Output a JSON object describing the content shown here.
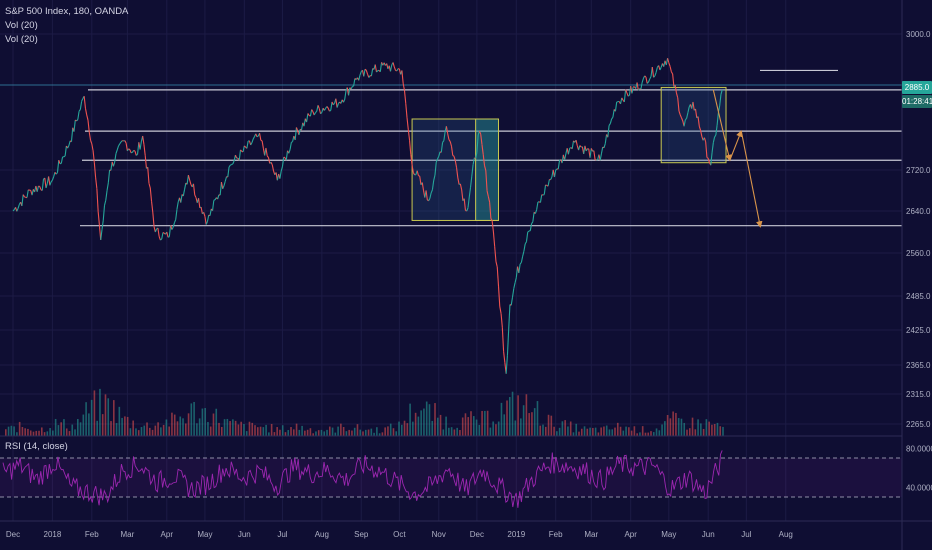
{
  "legend": {
    "symbol": "S&P 500 Index, 180, OANDA",
    "vol1": "Vol (20)",
    "vol2": "Vol (20)",
    "rsi": "RSI (14, close)"
  },
  "badges": {
    "last_price": "2885.0",
    "countdown": "01:28:41",
    "last_color": "#26a69a",
    "countdown_color": "#1e6b66"
  },
  "colors": {
    "background": "#0f0e33",
    "up": "#26a69a",
    "down": "#ef5350",
    "rsi": "#9c27b0",
    "level": "#c8c8d4",
    "box_border": "#c8c850",
    "projection": "#d9944a"
  },
  "chart_data": [
    {
      "type": "line",
      "title": "S&P 500 Index, 180, OANDA",
      "y_ticks": [
        "3000.0",
        "2720.0",
        "2640.0",
        "2560.0",
        "2485.0",
        "2425.0",
        "2365.0",
        "2315.0",
        "2265.0"
      ],
      "y_tick_values": [
        3000,
        2720,
        2640,
        2560,
        2485,
        2425,
        2365,
        2315,
        2265
      ],
      "x_ticks": [
        "Dec",
        "2018",
        "Feb",
        "Mar",
        "Apr",
        "May",
        "Jun",
        "Jul",
        "Aug",
        "Sep",
        "Oct",
        "Nov",
        "Dec",
        "2019",
        "Feb",
        "Mar",
        "Apr",
        "May",
        "Jun",
        "Jul",
        "Aug"
      ],
      "series": [
        {
          "x": [
            "2017-12-01",
            "2017-12-15",
            "2018-01-01",
            "2018-01-15",
            "2018-01-26",
            "2018-02-02",
            "2018-02-08",
            "2018-02-15",
            "2018-02-26",
            "2018-03-08",
            "2018-03-13",
            "2018-03-23",
            "2018-04-02",
            "2018-04-18",
            "2018-05-03",
            "2018-05-21",
            "2018-06-12",
            "2018-06-27",
            "2018-07-10",
            "2018-07-25",
            "2018-08-15",
            "2018-08-29",
            "2018-09-20",
            "2018-10-03",
            "2018-10-11",
            "2018-10-24",
            "2018-11-07",
            "2018-11-23",
            "2018-12-03",
            "2018-12-14",
            "2018-12-24",
            "2018-12-27",
            "2019-01-10",
            "2019-01-25",
            "2019-02-15",
            "2019-03-08",
            "2019-03-21",
            "2019-04-10",
            "2019-04-30",
            "2019-05-13",
            "2019-05-20",
            "2019-06-03",
            "2019-06-12"
          ],
          "values": [
            2640,
            2680,
            2700,
            2780,
            2872,
            2760,
            2585,
            2720,
            2780,
            2750,
            2790,
            2600,
            2590,
            2710,
            2620,
            2730,
            2790,
            2700,
            2790,
            2840,
            2860,
            2910,
            2935,
            2925,
            2730,
            2660,
            2810,
            2640,
            2800,
            2600,
            2350,
            2470,
            2600,
            2690,
            2780,
            2740,
            2860,
            2900,
            2950,
            2810,
            2860,
            2730,
            2885
          ]
        }
      ],
      "levels": [
        2885,
        2800,
        2740,
        2612
      ],
      "projections": [
        [
          2885,
          2740
        ],
        [
          2740,
          2800
        ],
        [
          2800,
          2610
        ]
      ]
    },
    {
      "type": "bar",
      "title": "Vol (20)",
      "series": [
        {
          "values": [
            2,
            3,
            2,
            4,
            3,
            9,
            10,
            5,
            3,
            4,
            5,
            8,
            7,
            4,
            3,
            3,
            2,
            3,
            2,
            2,
            3,
            2,
            2,
            3,
            9,
            7,
            4,
            5,
            5,
            8,
            10,
            8,
            4,
            3,
            2,
            2,
            3,
            2,
            2,
            5,
            4,
            4,
            3
          ]
        }
      ]
    },
    {
      "type": "line",
      "title": "RSI (14, close)",
      "y_ticks": [
        "80.0000",
        "40.0000"
      ],
      "y_tick_values": [
        80,
        40
      ],
      "guides": [
        70,
        30
      ],
      "series": [
        {
          "values": [
            55,
            62,
            48,
            66,
            40,
            35,
            30,
            58,
            63,
            45,
            52,
            38,
            44,
            60,
            50,
            56,
            42,
            61,
            54,
            58,
            47,
            63,
            57,
            45,
            33,
            41,
            60,
            36,
            58,
            40,
            27,
            50,
            65,
            62,
            57,
            46,
            64,
            60,
            62,
            38,
            51,
            34,
            68
          ]
        }
      ]
    }
  ]
}
